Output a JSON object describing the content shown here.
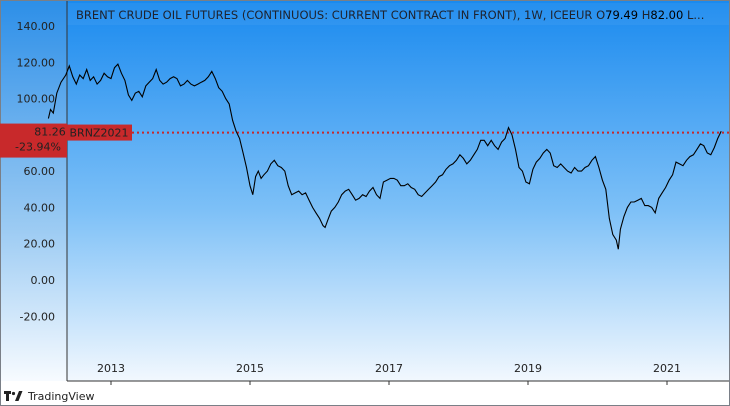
{
  "chart_data": {
    "type": "line",
    "title": "BRENT CRUDE OIL FUTURES (CONTINUOUS: CURRENT CONTRACT IN FRONT), 1W, ICEEUR",
    "ohlc_summary": {
      "open_label": "O",
      "open": "79.49",
      "high_label": "H",
      "high": "82.00",
      "truncated": "L..."
    },
    "xlabel": "",
    "ylabel": "",
    "ylim": [
      -35,
      150
    ],
    "x_ticks": [
      "2013",
      "2015",
      "2017",
      "2019",
      "2021"
    ],
    "y_ticks": [
      "140.00",
      "120.00",
      "100.00",
      "80.00",
      "60.00",
      "40.00",
      "20.00",
      "0.00",
      "-20.00"
    ],
    "grid": false,
    "current_price": {
      "value": "81.26",
      "change": "-23.94%",
      "label": "BRNZ2021",
      "level": 81.26,
      "color": "#c8292b"
    },
    "series": [
      {
        "values": [
          [
            2012.1,
            89
          ],
          [
            2012.13,
            94
          ],
          [
            2012.17,
            92
          ],
          [
            2012.22,
            103
          ],
          [
            2012.28,
            109
          ],
          [
            2012.35,
            113
          ],
          [
            2012.4,
            118
          ],
          [
            2012.45,
            112
          ],
          [
            2012.5,
            108
          ],
          [
            2012.55,
            113
          ],
          [
            2012.6,
            111
          ],
          [
            2012.65,
            116
          ],
          [
            2012.7,
            110
          ],
          [
            2012.75,
            112
          ],
          [
            2012.8,
            108
          ],
          [
            2012.85,
            110
          ],
          [
            2012.9,
            114
          ],
          [
            2012.95,
            112
          ],
          [
            2013.0,
            111
          ],
          [
            2013.05,
            117
          ],
          [
            2013.1,
            119
          ],
          [
            2013.15,
            114
          ],
          [
            2013.2,
            110
          ],
          [
            2013.25,
            102
          ],
          [
            2013.3,
            99
          ],
          [
            2013.35,
            103
          ],
          [
            2013.4,
            104
          ],
          [
            2013.45,
            101
          ],
          [
            2013.5,
            107
          ],
          [
            2013.55,
            109
          ],
          [
            2013.6,
            111
          ],
          [
            2013.65,
            116
          ],
          [
            2013.7,
            110
          ],
          [
            2013.75,
            108
          ],
          [
            2013.8,
            109
          ],
          [
            2013.85,
            111
          ],
          [
            2013.9,
            112
          ],
          [
            2013.95,
            111
          ],
          [
            2014.0,
            107
          ],
          [
            2014.05,
            108
          ],
          [
            2014.1,
            110
          ],
          [
            2014.15,
            108
          ],
          [
            2014.2,
            107
          ],
          [
            2014.25,
            108
          ],
          [
            2014.3,
            109
          ],
          [
            2014.35,
            110
          ],
          [
            2014.4,
            112
          ],
          [
            2014.45,
            115
          ],
          [
            2014.5,
            111
          ],
          [
            2014.55,
            106
          ],
          [
            2014.6,
            104
          ],
          [
            2014.65,
            100
          ],
          [
            2014.7,
            97
          ],
          [
            2014.75,
            88
          ],
          [
            2014.8,
            82
          ],
          [
            2014.85,
            78
          ],
          [
            2014.9,
            70
          ],
          [
            2014.95,
            62
          ],
          [
            2015.0,
            52
          ],
          [
            2015.04,
            47
          ],
          [
            2015.08,
            57
          ],
          [
            2015.12,
            60
          ],
          [
            2015.16,
            56
          ],
          [
            2015.2,
            58
          ],
          [
            2015.25,
            60
          ],
          [
            2015.3,
            64
          ],
          [
            2015.35,
            66
          ],
          [
            2015.4,
            63
          ],
          [
            2015.45,
            62
          ],
          [
            2015.5,
            60
          ],
          [
            2015.55,
            52
          ],
          [
            2015.6,
            47
          ],
          [
            2015.65,
            48
          ],
          [
            2015.7,
            49
          ],
          [
            2015.75,
            47
          ],
          [
            2015.8,
            48
          ],
          [
            2015.85,
            44
          ],
          [
            2015.9,
            40
          ],
          [
            2015.95,
            37
          ],
          [
            2016.0,
            34
          ],
          [
            2016.05,
            30
          ],
          [
            2016.08,
            29
          ],
          [
            2016.12,
            33
          ],
          [
            2016.17,
            38
          ],
          [
            2016.22,
            40
          ],
          [
            2016.27,
            43
          ],
          [
            2016.32,
            47
          ],
          [
            2016.37,
            49
          ],
          [
            2016.42,
            50
          ],
          [
            2016.47,
            47
          ],
          [
            2016.52,
            44
          ],
          [
            2016.57,
            45
          ],
          [
            2016.62,
            47
          ],
          [
            2016.67,
            46
          ],
          [
            2016.72,
            49
          ],
          [
            2016.77,
            51
          ],
          [
            2016.82,
            47
          ],
          [
            2016.87,
            45
          ],
          [
            2016.92,
            54
          ],
          [
            2016.97,
            55
          ],
          [
            2017.02,
            56
          ],
          [
            2017.07,
            56
          ],
          [
            2017.12,
            55
          ],
          [
            2017.17,
            52
          ],
          [
            2017.22,
            52
          ],
          [
            2017.27,
            53
          ],
          [
            2017.32,
            51
          ],
          [
            2017.37,
            50
          ],
          [
            2017.42,
            47
          ],
          [
            2017.47,
            46
          ],
          [
            2017.52,
            48
          ],
          [
            2017.57,
            50
          ],
          [
            2017.62,
            52
          ],
          [
            2017.67,
            54
          ],
          [
            2017.72,
            57
          ],
          [
            2017.77,
            58
          ],
          [
            2017.82,
            61
          ],
          [
            2017.87,
            63
          ],
          [
            2017.92,
            64
          ],
          [
            2017.97,
            66
          ],
          [
            2018.02,
            69
          ],
          [
            2018.07,
            67
          ],
          [
            2018.12,
            64
          ],
          [
            2018.17,
            66
          ],
          [
            2018.22,
            69
          ],
          [
            2018.27,
            72
          ],
          [
            2018.32,
            77
          ],
          [
            2018.37,
            77
          ],
          [
            2018.42,
            74
          ],
          [
            2018.47,
            77
          ],
          [
            2018.52,
            74
          ],
          [
            2018.57,
            72
          ],
          [
            2018.62,
            76
          ],
          [
            2018.67,
            78
          ],
          [
            2018.72,
            84
          ],
          [
            2018.77,
            80
          ],
          [
            2018.82,
            72
          ],
          [
            2018.87,
            62
          ],
          [
            2018.92,
            60
          ],
          [
            2018.97,
            54
          ],
          [
            2019.02,
            53
          ],
          [
            2019.07,
            61
          ],
          [
            2019.12,
            65
          ],
          [
            2019.17,
            67
          ],
          [
            2019.22,
            70
          ],
          [
            2019.27,
            72
          ],
          [
            2019.32,
            70
          ],
          [
            2019.37,
            63
          ],
          [
            2019.42,
            62
          ],
          [
            2019.47,
            64
          ],
          [
            2019.52,
            62
          ],
          [
            2019.57,
            60
          ],
          [
            2019.62,
            59
          ],
          [
            2019.67,
            62
          ],
          [
            2019.72,
            60
          ],
          [
            2019.77,
            60
          ],
          [
            2019.82,
            62
          ],
          [
            2019.87,
            63
          ],
          [
            2019.92,
            66
          ],
          [
            2019.97,
            68
          ],
          [
            2020.02,
            62
          ],
          [
            2020.07,
            55
          ],
          [
            2020.12,
            50
          ],
          [
            2020.17,
            34
          ],
          [
            2020.22,
            25
          ],
          [
            2020.27,
            22
          ],
          [
            2020.3,
            17
          ],
          [
            2020.33,
            28
          ],
          [
            2020.38,
            35
          ],
          [
            2020.43,
            40
          ],
          [
            2020.48,
            43
          ],
          [
            2020.53,
            43
          ],
          [
            2020.58,
            44
          ],
          [
            2020.63,
            45
          ],
          [
            2020.68,
            41
          ],
          [
            2020.73,
            41
          ],
          [
            2020.78,
            40
          ],
          [
            2020.83,
            37
          ],
          [
            2020.88,
            45
          ],
          [
            2020.93,
            48
          ],
          [
            2020.98,
            51
          ],
          [
            2021.03,
            55
          ],
          [
            2021.08,
            58
          ],
          [
            2021.13,
            65
          ],
          [
            2021.18,
            64
          ],
          [
            2021.23,
            63
          ],
          [
            2021.28,
            66
          ],
          [
            2021.33,
            68
          ],
          [
            2021.38,
            69
          ],
          [
            2021.43,
            72
          ],
          [
            2021.48,
            75
          ],
          [
            2021.53,
            74
          ],
          [
            2021.58,
            70
          ],
          [
            2021.63,
            69
          ],
          [
            2021.68,
            73
          ],
          [
            2021.73,
            78
          ],
          [
            2021.78,
            82
          ]
        ]
      }
    ]
  },
  "footer": {
    "brand": "TradingView"
  }
}
